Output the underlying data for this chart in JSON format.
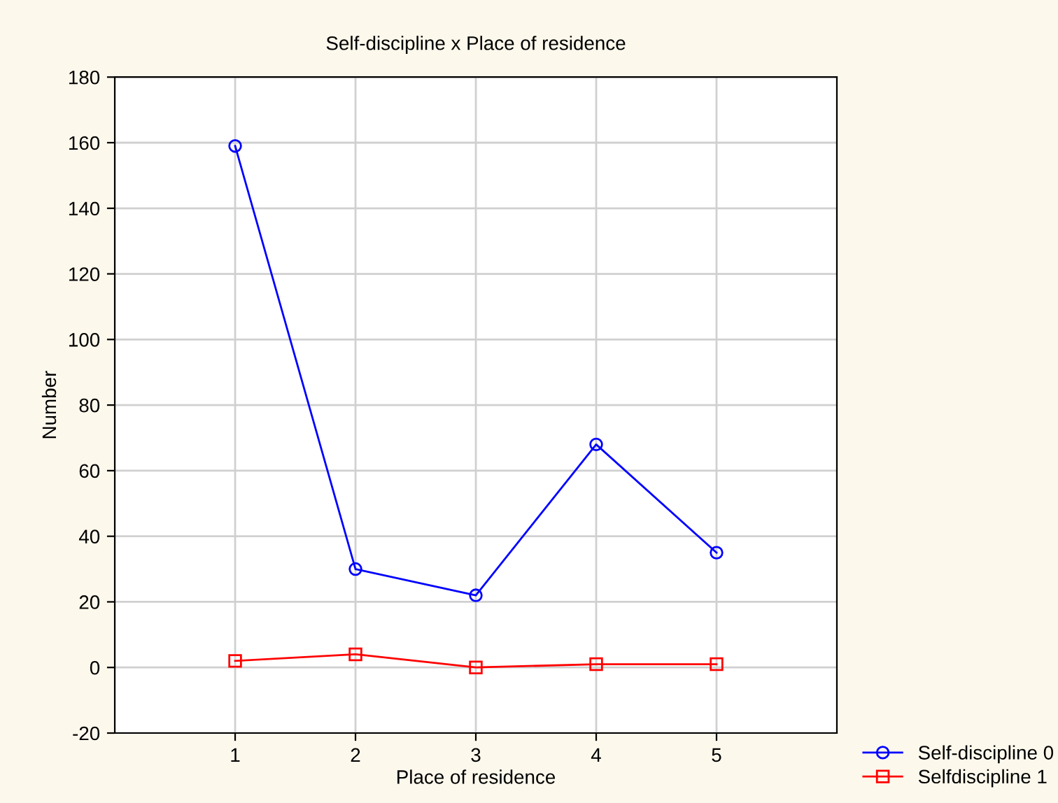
{
  "chart_data": {
    "type": "line",
    "title": "Self-discipline x Place of residence",
    "xlabel": "Place of residence",
    "ylabel": "Number",
    "x": [
      1,
      2,
      3,
      4,
      5
    ],
    "xlim": [
      0,
      6
    ],
    "xticks": [
      1,
      2,
      3,
      4,
      5
    ],
    "ylim": [
      -20,
      180
    ],
    "yticks": [
      -20,
      0,
      20,
      40,
      60,
      80,
      100,
      120,
      140,
      160,
      180
    ],
    "series": [
      {
        "name": "Self-discipline 0",
        "color": "#0000ff",
        "marker": "circle",
        "values": [
          159,
          30,
          22,
          68,
          35
        ]
      },
      {
        "name": "Selfdiscipline 1",
        "color": "#ff0000",
        "marker": "square",
        "values": [
          2,
          4,
          0,
          1,
          1
        ]
      }
    ],
    "grid": true,
    "legend": "bottom right",
    "line_style": "solid"
  }
}
